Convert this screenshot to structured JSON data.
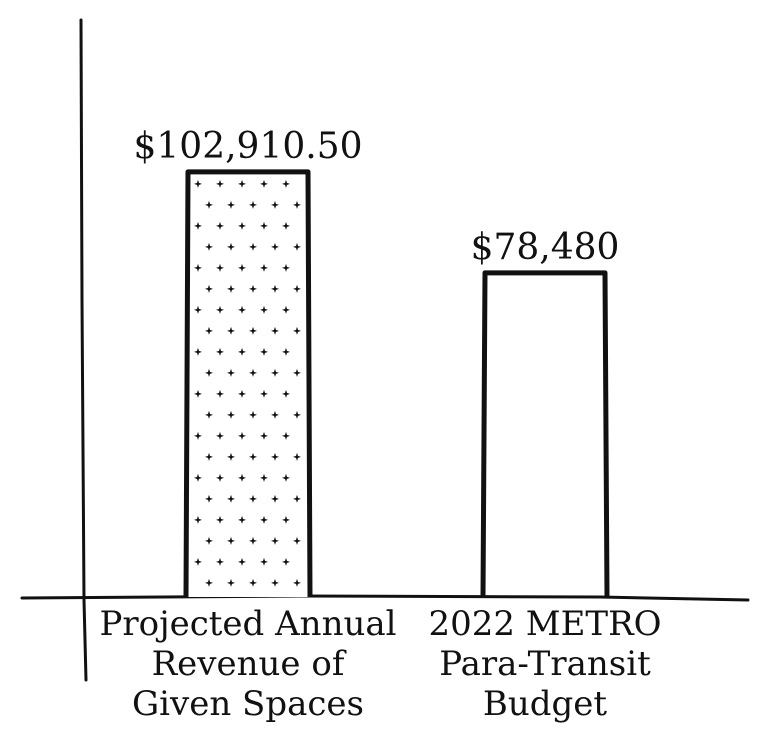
{
  "chart_data": {
    "type": "bar",
    "title": "",
    "xlabel": "",
    "ylabel": "",
    "categories": [
      [
        "Projected Annual",
        "Revenue of",
        "Given Spaces"
      ],
      [
        "2022 METRO",
        "Para-Transit",
        "Budget"
      ]
    ],
    "values": [
      102910.5,
      78480
    ],
    "value_labels": [
      "$102,910.50",
      "$78,480"
    ],
    "bar_styles": [
      "dotted",
      "plain"
    ],
    "ylim": [
      0,
      130000
    ],
    "grid": false,
    "legend": "none"
  }
}
